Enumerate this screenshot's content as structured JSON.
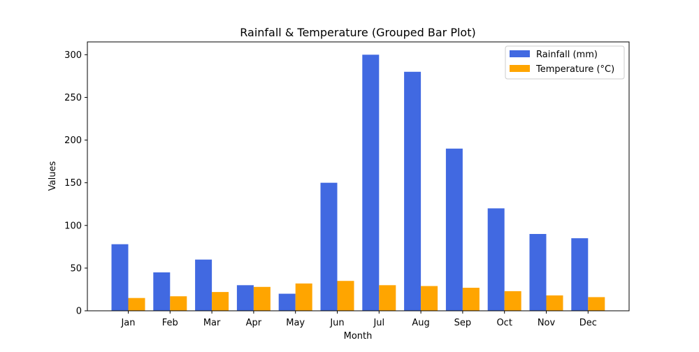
{
  "chart_data": {
    "type": "bar",
    "title": "Rainfall & Temperature (Grouped Bar Plot)",
    "xlabel": "Month",
    "ylabel": "Values",
    "categories": [
      "Jan",
      "Feb",
      "Mar",
      "Apr",
      "May",
      "Jun",
      "Jul",
      "Aug",
      "Sep",
      "Oct",
      "Nov",
      "Dec"
    ],
    "series": [
      {
        "name": "Rainfall (mm)",
        "color": "#4169e1",
        "values": [
          78,
          45,
          60,
          30,
          20,
          150,
          300,
          280,
          190,
          120,
          90,
          85
        ]
      },
      {
        "name": "Temperature (°C)",
        "color": "#ffa500",
        "values": [
          15,
          17,
          22,
          28,
          32,
          35,
          30,
          29,
          27,
          23,
          18,
          16
        ]
      }
    ],
    "yticks": [
      0,
      50,
      100,
      150,
      200,
      250,
      300
    ],
    "ylim": [
      0,
      315
    ],
    "grid": false,
    "legend_position": "top-right"
  }
}
